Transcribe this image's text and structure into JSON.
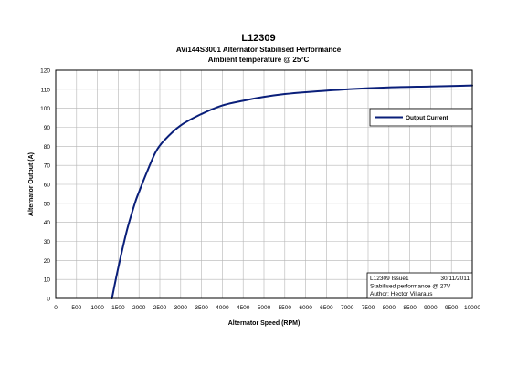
{
  "chart_data": {
    "type": "line",
    "title": "L12309",
    "subtitle": "AVi144S3001 Alternator Stabilised Performance",
    "subtitle2": "Ambient temperature @ 25°C",
    "xlabel": "Alternator Speed (RPM)",
    "ylabel": "Alternator Output (A)",
    "xlim": [
      0,
      10000
    ],
    "ylim": [
      0,
      120
    ],
    "x_ticks": [
      0,
      500,
      1000,
      1500,
      2000,
      2500,
      3000,
      3500,
      4000,
      4500,
      5000,
      5500,
      6000,
      6500,
      7000,
      7500,
      8000,
      8500,
      9000,
      9500,
      10000
    ],
    "y_ticks": [
      0,
      10,
      20,
      30,
      40,
      50,
      60,
      70,
      80,
      90,
      100,
      110,
      120
    ],
    "grid": true,
    "legend_position": "right",
    "series": [
      {
        "name": "Output Current",
        "color": "#0a1f7a",
        "x": [
          1350,
          1500,
          1700,
          1900,
          2000,
          2200,
          2400,
          2600,
          3000,
          3500,
          4000,
          4500,
          5000,
          5500,
          6000,
          7000,
          8000,
          9000,
          10000
        ],
        "y": [
          0,
          16,
          35,
          50,
          56,
          67,
          77,
          83,
          91,
          97,
          101.5,
          104,
          106,
          107.5,
          108.5,
          110,
          111,
          111.5,
          112
        ]
      }
    ],
    "annotation": {
      "line1_left": "L12309 Issue1",
      "line1_right": "30/11/2011",
      "line2": "Stabilised performance @ 27V",
      "line3": "Author: Hector Villaraus"
    }
  }
}
